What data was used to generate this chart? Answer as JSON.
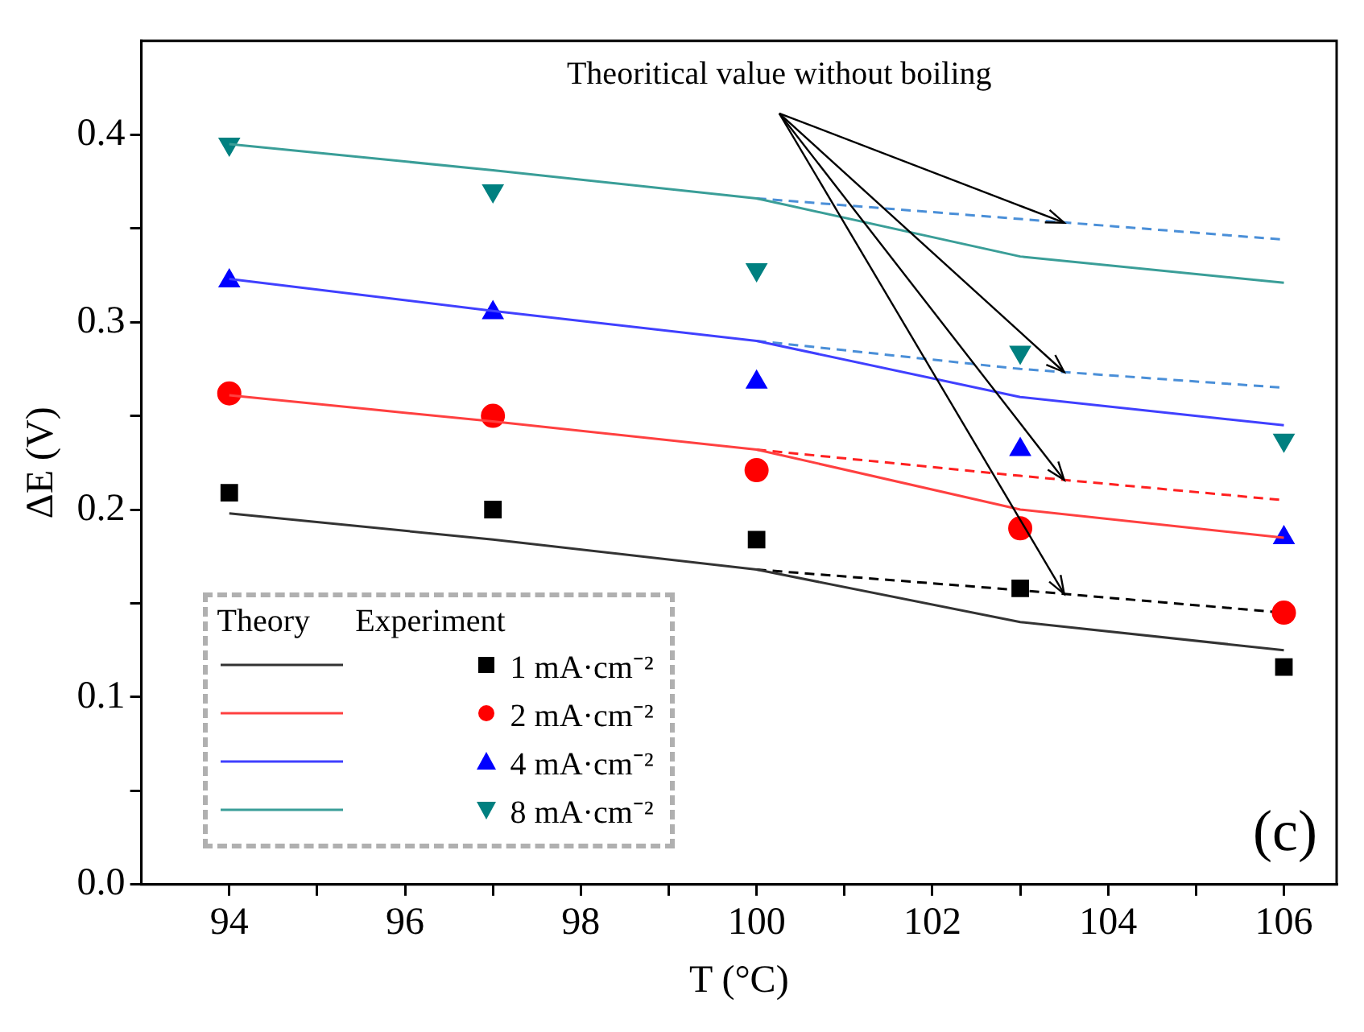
{
  "chart_data": {
    "type": "line",
    "xlabel": "T (°C)",
    "ylabel": "ΔE (V)",
    "xlim": [
      93,
      106.6
    ],
    "ylim": [
      0,
      0.45
    ],
    "xticks": [
      94,
      {
        "value": 95,
        "label": null
      },
      96,
      {
        "value": 97,
        "label": null
      },
      98,
      {
        "value": 99,
        "label": null
      },
      100,
      {
        "value": 101,
        "label": null
      },
      102,
      {
        "value": 103,
        "label": null
      },
      104,
      {
        "value": 105,
        "label": null
      },
      106
    ],
    "yticks": [
      {
        "value": 0,
        "label": "0.0"
      },
      {
        "value": 0.05,
        "label": null
      },
      0.1,
      {
        "value": 0.15,
        "label": null
      },
      0.2,
      {
        "value": 0.25,
        "label": null
      },
      0.3,
      {
        "value": 0.35,
        "label": null
      },
      0.4
    ],
    "grid": false,
    "legend": "bottom left",
    "annotations": [
      {
        "text": "Theoritical value without boiling",
        "x": 103.5,
        "y": 0.353
      },
      "Theory",
      "Experiment",
      "(c)"
    ],
    "series": [
      {
        "line_style": "solid",
        "color": "#333333",
        "x": [
          94,
          97,
          100,
          103,
          106
        ],
        "values": [
          0.198,
          0.184,
          0.168,
          0.14,
          0.125
        ]
      },
      {
        "line_style": "solid",
        "color": "#ff4040",
        "x": [
          94,
          97,
          100,
          103,
          106
        ],
        "values": [
          0.261,
          0.247,
          0.232,
          0.2,
          0.185
        ]
      },
      {
        "line_style": "solid",
        "color": "#4040ff",
        "x": [
          94,
          97,
          100,
          103,
          106
        ],
        "values": [
          0.323,
          0.306,
          0.29,
          0.26,
          0.245
        ]
      },
      {
        "line_style": "solid",
        "color": "#3a9e98",
        "x": [
          94,
          97,
          100,
          103,
          106
        ],
        "values": [
          0.395,
          0.381,
          0.366,
          0.335,
          0.321
        ]
      },
      {
        "type": "scatter",
        "name": "1 mA·cm⁻²",
        "marker": "square",
        "color": "#000000",
        "x": [
          94,
          97,
          100,
          103,
          106
        ],
        "values": [
          0.209,
          0.2,
          0.184,
          0.158,
          0.116
        ]
      },
      {
        "type": "scatter",
        "name": "2 mA·cm⁻²",
        "marker": "circle",
        "color": "#ff0000",
        "x": [
          94,
          97,
          100,
          103,
          106
        ],
        "values": [
          0.262,
          0.25,
          0.221,
          0.19,
          0.145
        ]
      },
      {
        "type": "scatter",
        "name": "4 mA·cm⁻²",
        "marker": "triangle",
        "color": "#0000ff",
        "x": [
          94,
          97,
          100,
          103,
          106
        ],
        "values": [
          0.322,
          0.305,
          0.268,
          0.232,
          0.185
        ]
      },
      {
        "type": "scatter",
        "name": "8 mA·cm⁻²",
        "marker": "triangle-down",
        "color": "#008080",
        "x": [
          94,
          97,
          100,
          103,
          106
        ],
        "values": [
          0.395,
          0.37,
          0.328,
          0.284,
          0.237
        ]
      },
      {
        "line_style": "dashed",
        "color": "#000000",
        "x": [
          100,
          103,
          106
        ],
        "values": [
          0.168,
          0.157,
          0.145
        ]
      },
      {
        "line_style": "dashed",
        "color": "#ff2020",
        "x": [
          100,
          103,
          106
        ],
        "values": [
          0.232,
          0.218,
          0.205
        ]
      },
      {
        "line_style": "dashed",
        "color": "#4a8fd8",
        "x": [
          100,
          103,
          106
        ],
        "values": [
          0.29,
          0.275,
          0.265
        ]
      },
      {
        "line_style": "dashed",
        "color": "#4a8fd8",
        "x": [
          100,
          103,
          106
        ],
        "values": [
          0.366,
          0.355,
          0.344
        ]
      }
    ]
  }
}
